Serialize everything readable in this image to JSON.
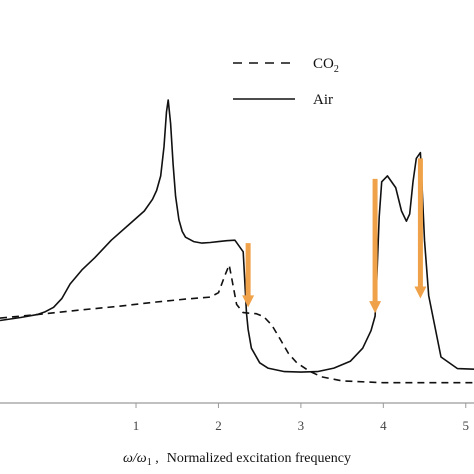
{
  "chart_data": {
    "type": "line",
    "title": "",
    "xlabel_symbol": "ω/ω",
    "xlabel_subscript": "1",
    "xlabel_sep": " ,",
    "xlabel_text": "Normalized excitation frequency",
    "ylabel": "",
    "xlim": [
      -0.65,
      5.1
    ],
    "ylim": [
      0,
      1
    ],
    "x_ticks": [
      1,
      2,
      3,
      4,
      5
    ],
    "x_tick_labels": [
      "1",
      "2",
      "3",
      "4",
      "5"
    ],
    "grid": false,
    "legend_position": "top-right",
    "series": [
      {
        "name_main": "CO",
        "name_sub": "2",
        "style": "dashed",
        "color": "#111111",
        "x": [
          -0.65,
          -0.2,
          0.3,
          0.8,
          1.2,
          1.6,
          1.9,
          2.0,
          2.08,
          2.13,
          2.17,
          2.22,
          2.3,
          2.38,
          2.46,
          2.55,
          2.65,
          2.75,
          2.85,
          2.95,
          3.1,
          3.25,
          3.5,
          4.0,
          4.5,
          5.1
        ],
        "y": [
          0.253,
          0.265,
          0.28,
          0.294,
          0.307,
          0.318,
          0.325,
          0.34,
          0.4,
          0.435,
          0.375,
          0.3,
          0.272,
          0.27,
          0.268,
          0.258,
          0.228,
          0.18,
          0.132,
          0.1,
          0.072,
          0.052,
          0.038,
          0.032,
          0.032,
          0.032
        ]
      },
      {
        "name_main": "Air",
        "name_sub": "",
        "style": "solid",
        "color": "#111111",
        "x": [
          -0.65,
          -0.4,
          -0.2,
          -0.1,
          0.0,
          0.1,
          0.2,
          0.35,
          0.5,
          0.7,
          0.9,
          1.1,
          1.2,
          1.25,
          1.3,
          1.34,
          1.37,
          1.39,
          1.42,
          1.45,
          1.48,
          1.52,
          1.56,
          1.6,
          1.7,
          1.8,
          1.9,
          2.0,
          2.1,
          2.2,
          2.3,
          2.34,
          2.36,
          2.4,
          2.5,
          2.6,
          2.8,
          3.0,
          3.2,
          3.4,
          3.6,
          3.75,
          3.85,
          3.9,
          3.92,
          3.95,
          3.98,
          4.05,
          4.15,
          4.22,
          4.28,
          4.32,
          4.36,
          4.4,
          4.45,
          4.47,
          4.5,
          4.55,
          4.7,
          4.9,
          5.1
        ],
        "y": [
          0.245,
          0.255,
          0.265,
          0.275,
          0.29,
          0.32,
          0.37,
          0.42,
          0.46,
          0.52,
          0.57,
          0.62,
          0.66,
          0.69,
          0.74,
          0.84,
          0.96,
          1.0,
          0.92,
          0.78,
          0.67,
          0.59,
          0.55,
          0.53,
          0.515,
          0.51,
          0.512,
          0.515,
          0.518,
          0.52,
          0.48,
          0.27,
          0.215,
          0.15,
          0.1,
          0.082,
          0.07,
          0.068,
          0.07,
          0.082,
          0.105,
          0.15,
          0.21,
          0.26,
          0.38,
          0.6,
          0.72,
          0.74,
          0.7,
          0.62,
          0.585,
          0.61,
          0.72,
          0.8,
          0.82,
          0.7,
          0.52,
          0.33,
          0.12,
          0.08,
          0.078
        ]
      }
    ],
    "arrows": [
      {
        "x": 2.36,
        "y_from": 0.51,
        "y_to": 0.29
      },
      {
        "x": 3.9,
        "y_from": 0.73,
        "y_to": 0.27
      },
      {
        "x": 4.45,
        "y_from": 0.8,
        "y_to": 0.32
      }
    ],
    "arrow_color": "#f0a24a"
  }
}
